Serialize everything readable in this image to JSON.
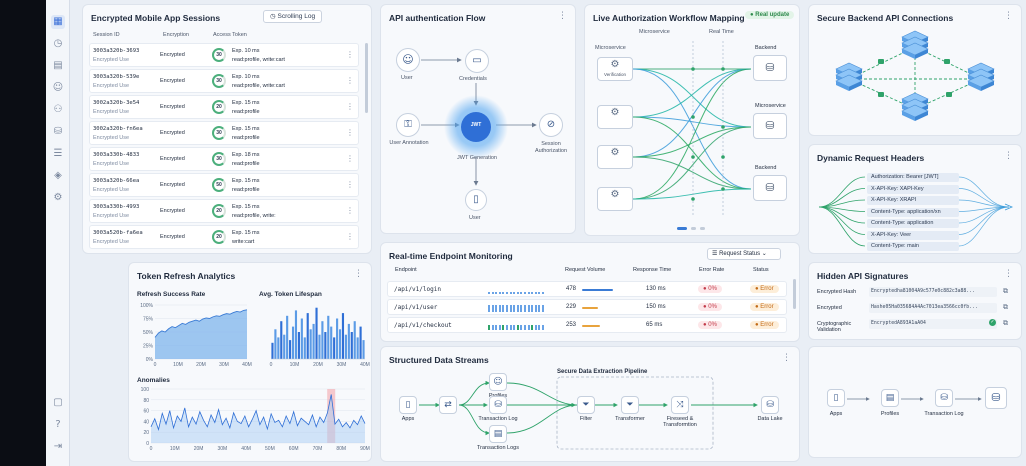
{
  "nav_icons": [
    "dashboard-icon",
    "clock-icon",
    "document-icon",
    "users-icon",
    "org-icon",
    "database-icon",
    "sliders-icon",
    "cube-icon",
    "settings-icon"
  ],
  "nav_glyphs": [
    "▦",
    "◷",
    "▤",
    "☺",
    "⚇",
    "⛁",
    "☰",
    "◈",
    "⚙"
  ],
  "nav_bottom_glyphs": [
    "▢",
    "?",
    "⇥"
  ],
  "sessions": {
    "title": "Encrypted Mobile App Sessions",
    "button": "Scrolling Log",
    "columns": [
      "Session ID",
      "Encryption",
      "Access Token"
    ],
    "rows": [
      {
        "id": "3003a320b-3693",
        "sub": "Encrypted Use",
        "enc": "Encrypted",
        "ring": "30",
        "exp": "Exp. 10 ms",
        "scope": "read:profile, write:cart"
      },
      {
        "id": "3003a320b-539e",
        "sub": "Encrypted Use",
        "enc": "Encrypted",
        "ring": "30",
        "exp": "Exp. 10 ms",
        "scope": "read:profile, write:cart"
      },
      {
        "id": "3002a320b-3e54",
        "sub": "Encrypted Use",
        "enc": "Encrypted",
        "ring": "20",
        "exp": "Exp. 15 ms",
        "scope": "read:profile"
      },
      {
        "id": "3002a320b-fn6ea",
        "sub": "Encrypted Use",
        "enc": "Encrypted",
        "ring": "30",
        "exp": "Exp. 15 ms",
        "scope": "read:profile"
      },
      {
        "id": "3003a330b-4833",
        "sub": "Encrypted Use",
        "enc": "Encrypted",
        "ring": "30",
        "exp": "Exp. 18 ms",
        "scope": "read:profile"
      },
      {
        "id": "3003a320b-66ea",
        "sub": "Encrypted Use",
        "enc": "Encrypted",
        "ring": "50",
        "exp": "Exp. 15 ms",
        "scope": "read:profile"
      },
      {
        "id": "3003a330b-4993",
        "sub": "Encrypted Use",
        "enc": "Encrypted",
        "ring": "20",
        "exp": "Exp. 15 ms",
        "scope": "read:profile, write:"
      },
      {
        "id": "3003a520b-fa6ea",
        "sub": "Encrypted Use",
        "enc": "Encrypted",
        "ring": "20",
        "exp": "Exp. 15 ms",
        "scope": "write:cart"
      }
    ]
  },
  "auth_flow": {
    "title": "API authentication Flow",
    "nodes": {
      "user": "User",
      "credentials": "Credentials",
      "annotation": "User Annotation",
      "jwt": "JWT Generation",
      "jwt_badge": "JWT",
      "session": "Session Authorization",
      "user2": "User"
    }
  },
  "workflow": {
    "title": "Live Authorization Workflow Mapping",
    "badge": "Real update",
    "col_labels": [
      "Microservice",
      "Microservice",
      "Real Time"
    ],
    "left_nodes": [
      "Verification",
      "",
      "",
      ""
    ],
    "right_nodes": [
      "Backend",
      "Microservice",
      "Backend"
    ]
  },
  "backend": {
    "title": "Secure Backend API Connections"
  },
  "headers": {
    "title": "Dynamic Request Headers",
    "items": [
      "Authorization: Bearer [JWT]",
      "X-API-Key: XAPI-Key",
      "X-API-Key: XRAPI",
      "Content-Type: application/xn",
      "Content-Type: application",
      "X-API-Key: Veer",
      "Content-Type: main"
    ]
  },
  "token_refresh": {
    "title": "Token Refresh Analytics",
    "rate_title": "Refresh Success Rate",
    "lifespan_title": "Avg. Token Lifespan",
    "anomalies_title": "Anomalies"
  },
  "chart_data": [
    {
      "type": "area",
      "title": "Refresh Success Rate",
      "x_ticks": [
        "0",
        "10M",
        "20M",
        "30M",
        "40M"
      ],
      "y_ticks": [
        "100%",
        "75%",
        "50%",
        "25%",
        "0%"
      ],
      "ylim": [
        0,
        100
      ],
      "values": [
        40,
        48,
        52,
        50,
        56,
        60,
        58,
        62,
        66,
        64,
        68,
        70,
        72,
        70,
        74,
        76,
        75,
        78,
        80,
        79,
        82,
        84,
        83,
        86,
        88,
        87,
        90,
        91
      ]
    },
    {
      "type": "bar",
      "title": "Avg. Token Lifespan",
      "x_ticks": [
        "0",
        "10M",
        "20M",
        "30M",
        "40M"
      ],
      "values": [
        30,
        55,
        40,
        70,
        45,
        80,
        35,
        60,
        90,
        50,
        75,
        40,
        85,
        55,
        65,
        95,
        45,
        70,
        50,
        80,
        60,
        40,
        75,
        55,
        85,
        45,
        65,
        50,
        70,
        40,
        60,
        35
      ]
    },
    {
      "type": "line",
      "title": "Anomalies",
      "y_ticks": [
        "100",
        "80",
        "60",
        "40",
        "20",
        "0"
      ],
      "x_ticks": [
        "0",
        "10M",
        "20M",
        "30M",
        "40M",
        "50M",
        "60M",
        "70M",
        "80M",
        "90M"
      ],
      "ylim": [
        0,
        100
      ],
      "values": [
        30,
        45,
        25,
        55,
        35,
        60,
        28,
        50,
        40,
        65,
        30,
        48,
        35,
        58,
        42,
        30,
        52,
        38,
        62,
        34,
        46,
        28,
        56,
        40,
        36,
        50,
        30,
        44,
        60,
        34,
        48,
        26,
        54,
        38,
        42,
        30,
        50,
        36,
        58,
        32,
        46,
        40,
        34,
        52,
        30,
        48,
        38,
        56,
        90,
        35,
        44,
        30,
        38,
        28,
        42,
        34,
        50,
        36
      ],
      "highlight_index": 48
    }
  ],
  "monitoring": {
    "title": "Real-time Endpoint Monitoring",
    "dropdown": "Request Status",
    "columns": [
      "Endpoint",
      "Request Volume",
      "Response Time",
      "Error Rate",
      "Status"
    ],
    "rows": [
      {
        "endpoint": "/api/v1/login",
        "volume": "478",
        "response": "130 ms",
        "error": "0%",
        "status": "Error",
        "vol_fraction": 0.85,
        "resp_color": "#3a7bd5"
      },
      {
        "endpoint": "/api/v1/user",
        "volume": "229",
        "response": "150 ms",
        "error": "0%",
        "status": "Error",
        "vol_fraction": 0.45,
        "resp_color": "#e8a33d"
      },
      {
        "endpoint": "/api/v1/checkout",
        "volume": "253",
        "response": "65 ms",
        "error": "0%",
        "status": "Error",
        "vol_fraction": 0.5,
        "resp_color": "#e8a33d"
      }
    ]
  },
  "signatures": {
    "title": "Hidden API Signatures",
    "rows": [
      {
        "label": "Encrypted Hash",
        "value": "Encryptedha81004A9c577e0c882c3a88..."
      },
      {
        "label": "Encrypted",
        "value": "Hashe05Ha035684A4Ac7013ea3566cc0fb..."
      },
      {
        "label": "Cryptographic Validation",
        "value": "EncryptedA893A1aA04"
      }
    ]
  },
  "streams": {
    "title": "Structured Data Streams",
    "pipeline_title": "Secure Data Extraction Pipeline",
    "nodes": {
      "apps": "Apps",
      "profiles": "Profiles",
      "tlog": "Transaction Log",
      "tlogs": "Transaction Logs",
      "filter": "Filter",
      "transformer": "Transformer",
      "fireseed": "Fireseed & Transformtion",
      "lake": "Data Lake"
    }
  },
  "mini_flow": {
    "nodes": [
      "Apps",
      "Profiles",
      "Transaction Log"
    ]
  }
}
